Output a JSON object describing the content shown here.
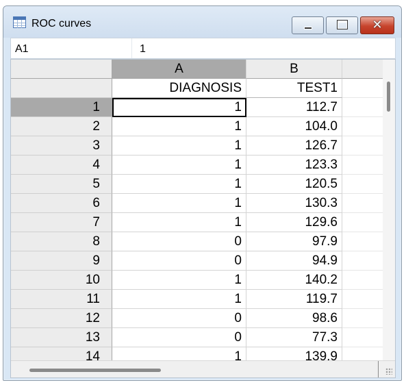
{
  "window": {
    "title": "ROC curves"
  },
  "cellbar": {
    "ref": "A1",
    "value": "1"
  },
  "columns": [
    {
      "letter": "A",
      "variable": "DIAGNOSIS"
    },
    {
      "letter": "B",
      "variable": "TEST1"
    }
  ],
  "rows": [
    {
      "n": "1",
      "a": "1",
      "b": "112.7"
    },
    {
      "n": "2",
      "a": "1",
      "b": "104.0"
    },
    {
      "n": "3",
      "a": "1",
      "b": "126.7"
    },
    {
      "n": "4",
      "a": "1",
      "b": "123.3"
    },
    {
      "n": "5",
      "a": "1",
      "b": "120.5"
    },
    {
      "n": "6",
      "a": "1",
      "b": "130.3"
    },
    {
      "n": "7",
      "a": "1",
      "b": "129.6"
    },
    {
      "n": "8",
      "a": "0",
      "b": "97.9"
    },
    {
      "n": "9",
      "a": "0",
      "b": "94.9"
    },
    {
      "n": "10",
      "a": "1",
      "b": "140.2"
    },
    {
      "n": "11",
      "a": "1",
      "b": "119.7"
    },
    {
      "n": "12",
      "a": "0",
      "b": "98.6"
    },
    {
      "n": "13",
      "a": "0",
      "b": "77.3"
    },
    {
      "n": "14",
      "a": "1",
      "b": "139.9"
    }
  ],
  "selection": {
    "row_index": 0,
    "column": "A"
  },
  "icons": {
    "app": "spreadsheet-icon",
    "minimize": "minimize-icon",
    "maximize": "maximize-icon",
    "close": "close-icon"
  },
  "colors": {
    "close_button": "#c7442d",
    "selected_header": "#a9a9a9",
    "header": "#ececec"
  }
}
